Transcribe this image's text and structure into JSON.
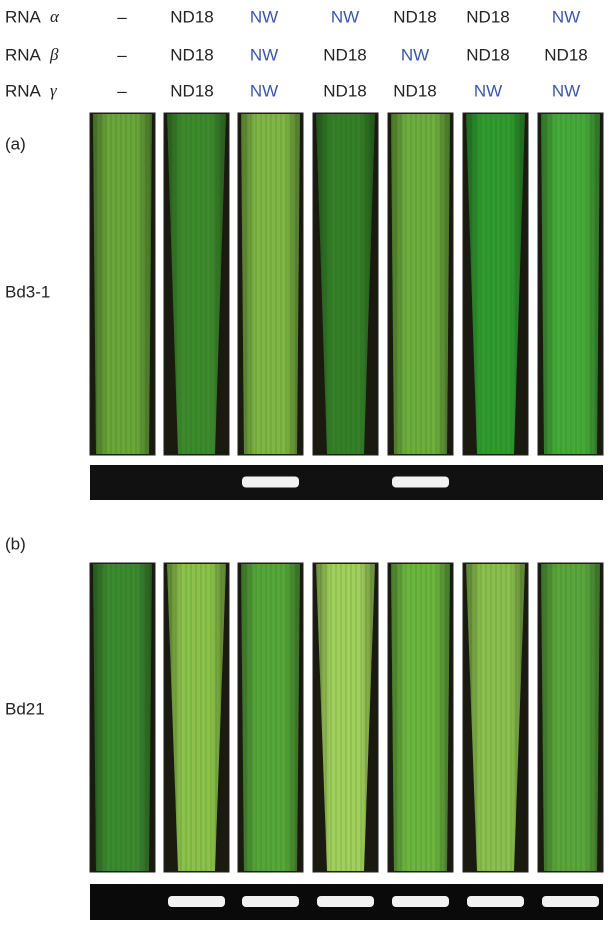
{
  "header": {
    "rows": [
      {
        "label": "RNA",
        "symbol": "α",
        "cells": [
          {
            "text": "–",
            "color": "#222222"
          },
          {
            "text": "ND18",
            "color": "#222222"
          },
          {
            "text": "NW",
            "color": "#3b56a6"
          },
          {
            "text": "NW",
            "color": "#3b56a6"
          },
          {
            "text": "ND18",
            "color": "#222222"
          },
          {
            "text": "ND18",
            "color": "#222222"
          },
          {
            "text": "NW",
            "color": "#3b56a6"
          }
        ]
      },
      {
        "label": "RNA",
        "symbol": "β",
        "cells": [
          {
            "text": "–",
            "color": "#222222"
          },
          {
            "text": "ND18",
            "color": "#222222"
          },
          {
            "text": "NW",
            "color": "#3b56a6"
          },
          {
            "text": "ND18",
            "color": "#222222"
          },
          {
            "text": "NW",
            "color": "#3b56a6"
          },
          {
            "text": "ND18",
            "color": "#222222"
          },
          {
            "text": "ND18",
            "color": "#222222"
          }
        ]
      },
      {
        "label": "RNA",
        "symbol": "γ",
        "cells": [
          {
            "text": "–",
            "color": "#222222"
          },
          {
            "text": "ND18",
            "color": "#222222"
          },
          {
            "text": "NW",
            "color": "#3b56a6"
          },
          {
            "text": "ND18",
            "color": "#222222"
          },
          {
            "text": "ND18",
            "color": "#222222"
          },
          {
            "text": "NW",
            "color": "#3b56a6"
          },
          {
            "text": "NW",
            "color": "#3b56a6"
          }
        ]
      }
    ]
  },
  "panels": [
    {
      "label": "(a)",
      "line": "Bd3-1"
    },
    {
      "label": "(b)",
      "line": "Bd21"
    }
  ]
}
